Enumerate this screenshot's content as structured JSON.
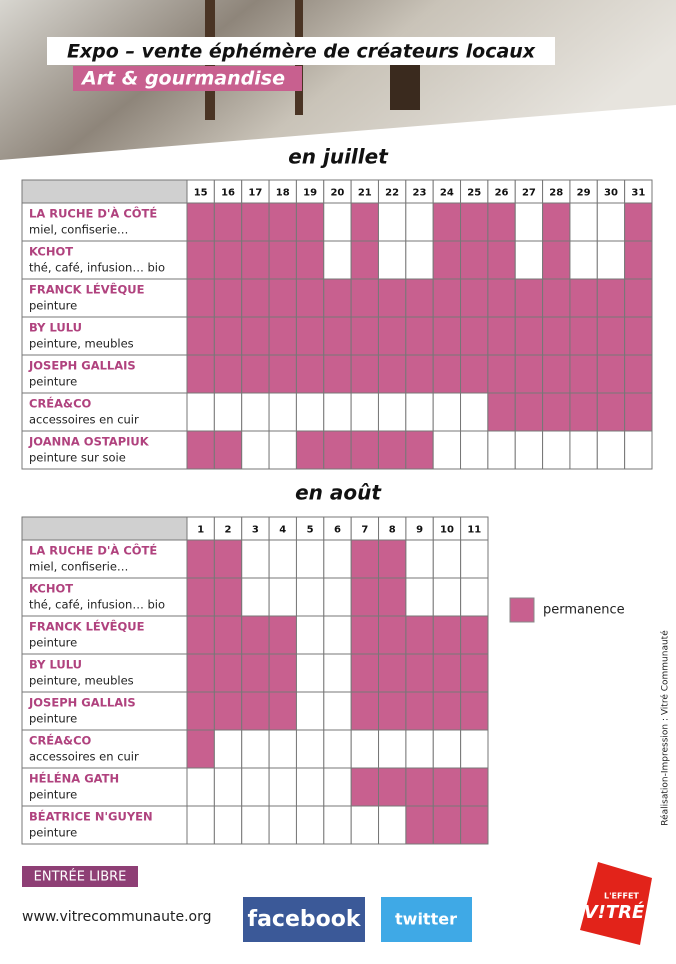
{
  "header": {
    "title": "Expo – vente éphémère de créateurs locaux",
    "subtitle": "Art & gourmandise"
  },
  "fill_color": "#c8608f",
  "july": {
    "title": "en juillet",
    "days": [
      15,
      16,
      17,
      18,
      19,
      20,
      21,
      22,
      23,
      24,
      25,
      26,
      27,
      28,
      29,
      30,
      31
    ],
    "rows": [
      {
        "name": "LA RUCHE D'À CÔTÉ",
        "desc": "miel, confiserie…",
        "cells": [
          1,
          1,
          1,
          1,
          1,
          0,
          1,
          0,
          0,
          1,
          1,
          1,
          0,
          1,
          0,
          0,
          1
        ]
      },
      {
        "name": "KCHOT",
        "desc": "thé, café, infusion… bio",
        "cells": [
          1,
          1,
          1,
          1,
          1,
          0,
          1,
          0,
          0,
          1,
          1,
          1,
          0,
          1,
          0,
          0,
          1
        ]
      },
      {
        "name": "FRANCK LÉVÊQUE",
        "desc": "peinture",
        "cells": [
          1,
          1,
          1,
          1,
          1,
          1,
          1,
          1,
          1,
          1,
          1,
          1,
          1,
          1,
          1,
          1,
          1
        ]
      },
      {
        "name": "BY LULU",
        "desc": "peinture, meubles",
        "cells": [
          1,
          1,
          1,
          1,
          1,
          1,
          1,
          1,
          1,
          1,
          1,
          1,
          1,
          1,
          1,
          1,
          1
        ]
      },
      {
        "name": "JOSEPH GALLAIS",
        "desc": "peinture",
        "cells": [
          1,
          1,
          1,
          1,
          1,
          1,
          1,
          1,
          1,
          1,
          1,
          1,
          1,
          1,
          1,
          1,
          1
        ]
      },
      {
        "name": "CRÉA&CO",
        "desc": "accessoires en cuir",
        "cells": [
          0,
          0,
          0,
          0,
          0,
          0,
          0,
          0,
          0,
          0,
          0,
          1,
          1,
          1,
          1,
          1,
          1
        ]
      },
      {
        "name": "JOANNA OSTAPIUK",
        "desc": "peinture sur soie",
        "cells": [
          1,
          1,
          0,
          0,
          1,
          1,
          1,
          1,
          1,
          0,
          0,
          0,
          0,
          0,
          0,
          0,
          0
        ]
      }
    ]
  },
  "august": {
    "title": "en août",
    "days": [
      1,
      2,
      3,
      4,
      5,
      6,
      7,
      8,
      9,
      10,
      11
    ],
    "rows": [
      {
        "name": "LA RUCHE D'À CÔTÉ",
        "desc": "miel, confiserie…",
        "cells": [
          1,
          1,
          0,
          0,
          0,
          0,
          1,
          1,
          0,
          0,
          0
        ]
      },
      {
        "name": "KCHOT",
        "desc": "thé, café, infusion… bio",
        "cells": [
          1,
          1,
          0,
          0,
          0,
          0,
          1,
          1,
          0,
          0,
          0
        ]
      },
      {
        "name": "FRANCK LÉVÊQUE",
        "desc": "peinture",
        "cells": [
          1,
          1,
          1,
          1,
          0,
          0,
          1,
          1,
          1,
          1,
          1
        ]
      },
      {
        "name": "BY LULU",
        "desc": "peinture, meubles",
        "cells": [
          1,
          1,
          1,
          1,
          0,
          0,
          1,
          1,
          1,
          1,
          1
        ]
      },
      {
        "name": "JOSEPH GALLAIS",
        "desc": "peinture",
        "cells": [
          1,
          1,
          1,
          1,
          0,
          0,
          1,
          1,
          1,
          1,
          1
        ]
      },
      {
        "name": "CRÉA&CO",
        "desc": "accessoires en cuir",
        "cells": [
          1,
          0,
          0,
          0,
          0,
          0,
          0,
          0,
          0,
          0,
          0
        ]
      },
      {
        "name": "HÉLÉNA GATH",
        "desc": "peinture",
        "cells": [
          0,
          0,
          0,
          0,
          0,
          0,
          1,
          1,
          1,
          1,
          1
        ]
      },
      {
        "name": "BÉATRICE N'GUYEN",
        "desc": "peinture",
        "cells": [
          0,
          0,
          0,
          0,
          0,
          0,
          0,
          0,
          1,
          1,
          1
        ]
      }
    ]
  },
  "legend": "permanence",
  "credit": "Réalisation-Impression : Vitré Communauté",
  "entry": "ENTRÉE LIBRE",
  "website": "www.vitrecommunaute.org",
  "facebook": "facebook",
  "twitter": "twitter",
  "logo": {
    "top": "L'EFFET",
    "main": "V!TRÉ"
  }
}
